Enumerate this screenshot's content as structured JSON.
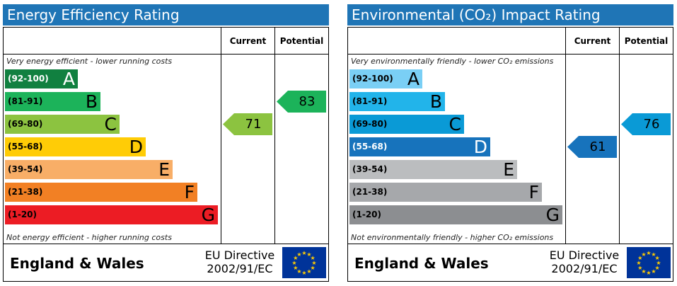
{
  "energy": {
    "title": "Energy Efficiency Rating",
    "col_current": "Current",
    "col_potential": "Potential",
    "top_caption": "Very energy efficient - lower running costs",
    "bottom_caption": "Not energy efficient - higher running costs",
    "bands": [
      {
        "range": "(92-100)",
        "letter": "A",
        "color": "#118040"
      },
      {
        "range": "(81-91)",
        "letter": "B",
        "color": "#1cb35a"
      },
      {
        "range": "(69-80)",
        "letter": "C",
        "color": "#8cc340"
      },
      {
        "range": "(55-68)",
        "letter": "D",
        "color": "#ffcc06"
      },
      {
        "range": "(39-54)",
        "letter": "E",
        "color": "#f8ae67"
      },
      {
        "range": "(21-38)",
        "letter": "F",
        "color": "#f28024"
      },
      {
        "range": "(1-20)",
        "letter": "G",
        "color": "#ec1c24"
      }
    ],
    "current": {
      "value": "71",
      "band": "C",
      "color": "#8cc340"
    },
    "potential": {
      "value": "83",
      "band": "B",
      "color": "#1cb35a"
    },
    "region": "England & Wales",
    "directive_line1": "EU Directive",
    "directive_line2": "2002/91/EC"
  },
  "environmental": {
    "title": "Environmental (CO₂) Impact Rating",
    "col_current": "Current",
    "col_potential": "Potential",
    "top_caption": "Very environmentally friendly - lower CO₂ emissions",
    "bottom_caption": "Not environmentally friendly - higher CO₂ emissions",
    "bands": [
      {
        "range": "(92-100)",
        "letter": "A",
        "color": "#7acff5"
      },
      {
        "range": "(81-91)",
        "letter": "B",
        "color": "#22b4ea"
      },
      {
        "range": "(69-80)",
        "letter": "C",
        "color": "#0a9ad6"
      },
      {
        "range": "(55-68)",
        "letter": "D",
        "color": "#1773bc"
      },
      {
        "range": "(39-54)",
        "letter": "E",
        "color": "#bbbdbf"
      },
      {
        "range": "(21-38)",
        "letter": "F",
        "color": "#a6a8ab"
      },
      {
        "range": "(1-20)",
        "letter": "G",
        "color": "#8c8e91"
      }
    ],
    "current": {
      "value": "61",
      "band": "D",
      "color": "#1773bc"
    },
    "potential": {
      "value": "76",
      "band": "C",
      "color": "#0a9ad6"
    },
    "region": "England & Wales",
    "directive_line1": "EU Directive",
    "directive_line2": "2002/91/EC"
  },
  "colors": {
    "title_bar": "#1f75b6",
    "eu_flag": "#003399",
    "eu_star": "#ffcc00"
  }
}
